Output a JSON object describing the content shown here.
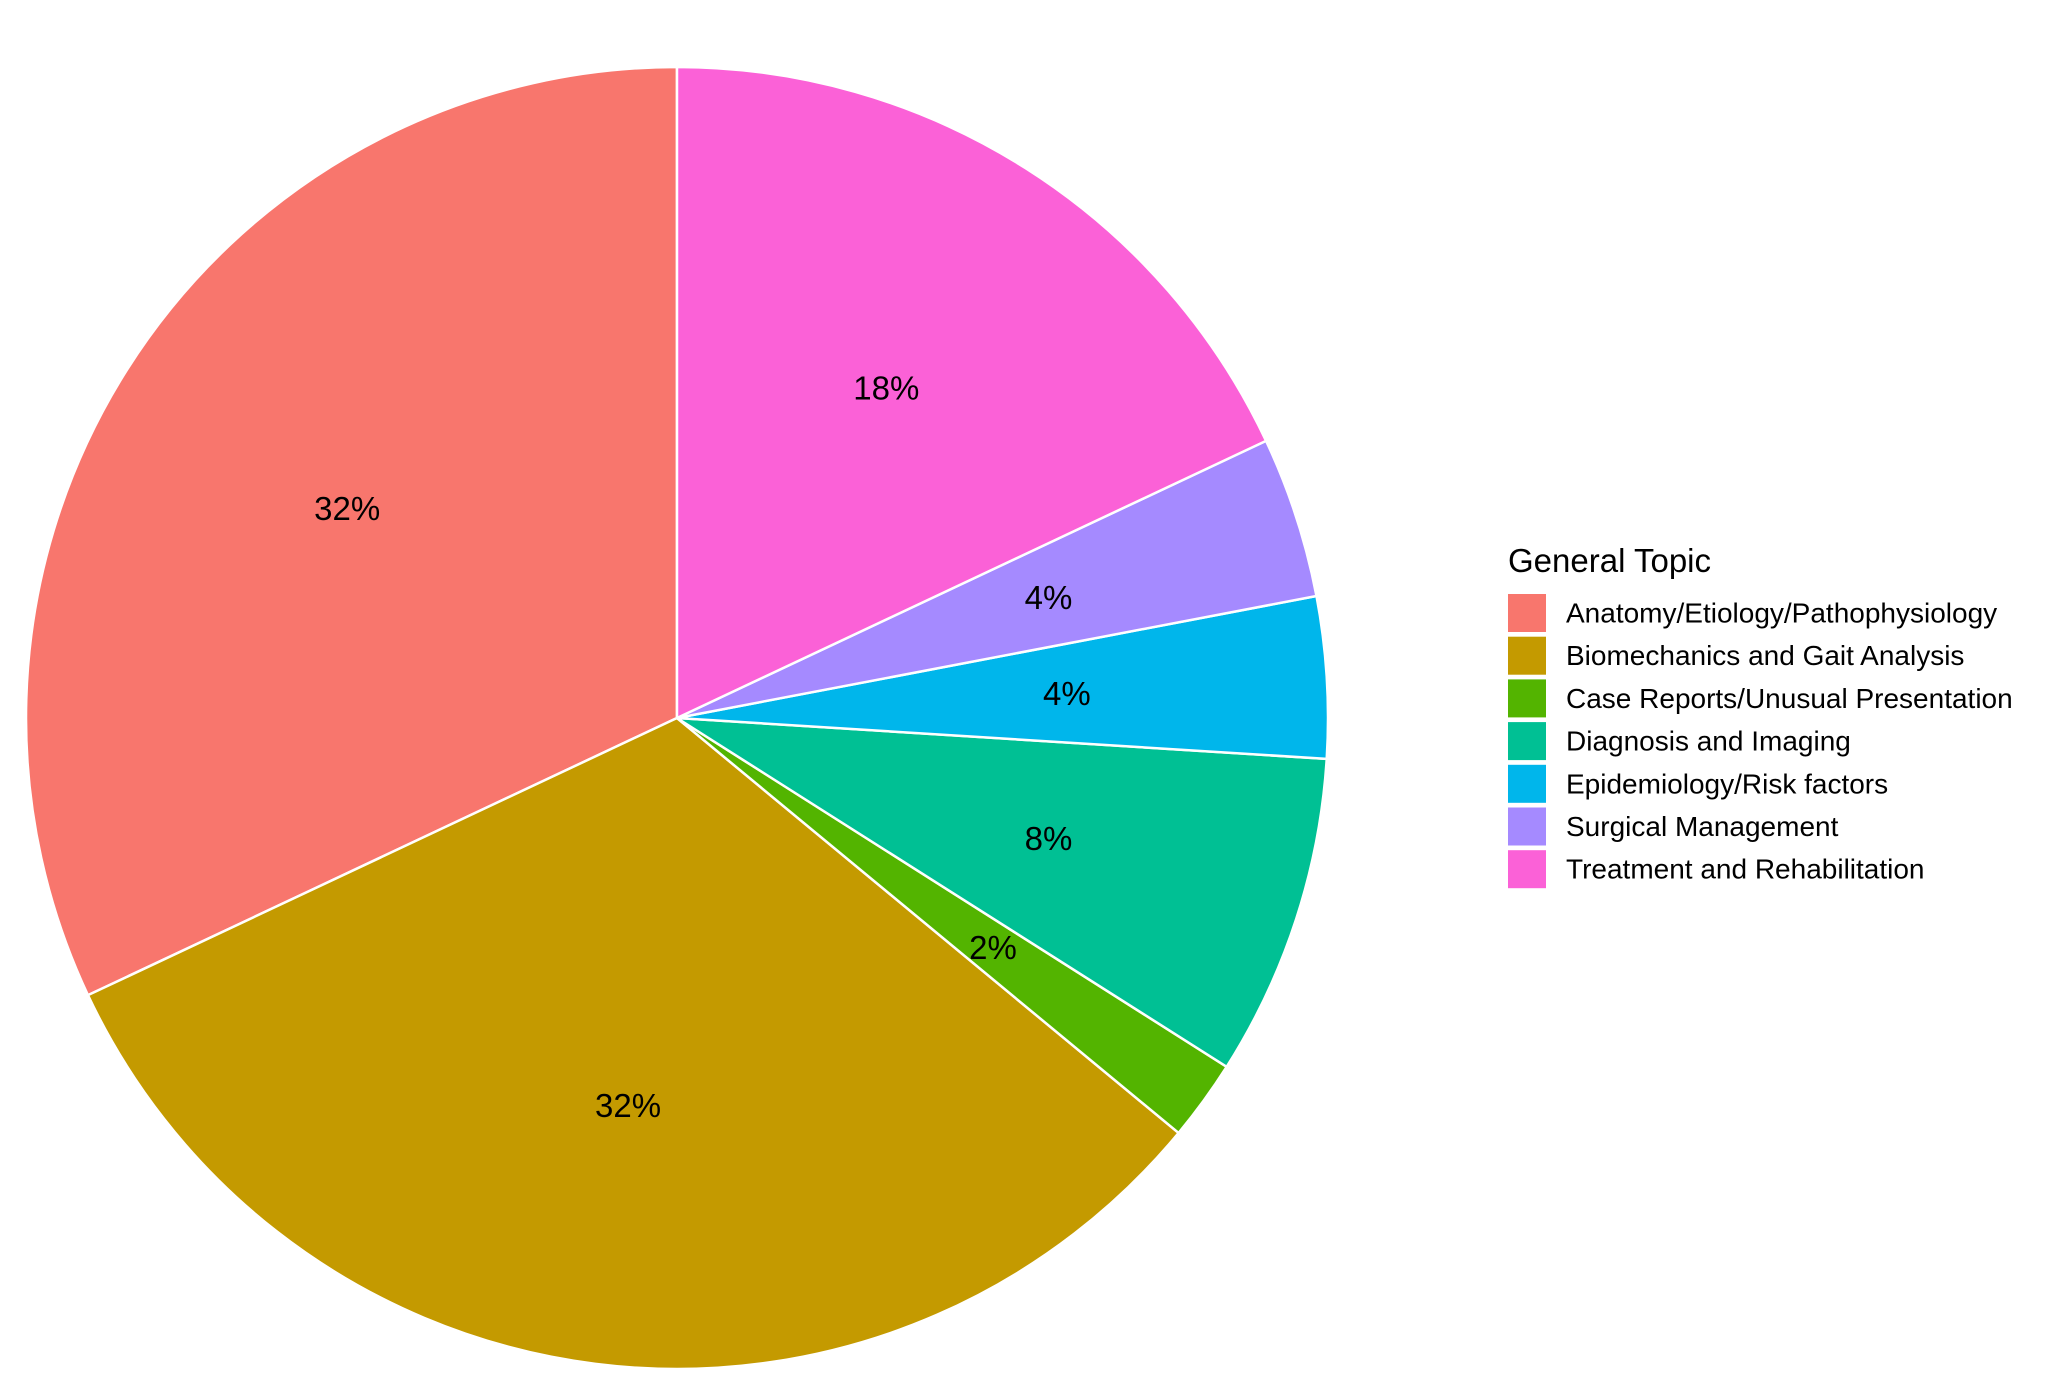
{
  "chart_data": {
    "type": "pie",
    "legend_title": "General Topic",
    "legend_placement": "right",
    "start_angle_deg": 0,
    "direction": "counterclockwise",
    "slices": [
      {
        "category": "Anatomy/Etiology/Pathophysiology",
        "value": 32,
        "label": "32%",
        "color": "#F8766D"
      },
      {
        "category": "Biomechanics and Gait Analysis",
        "value": 32,
        "label": "32%",
        "color": "#C49A00"
      },
      {
        "category": "Case Reports/Unusual Presentation",
        "value": 2,
        "label": "2%",
        "color": "#53B400"
      },
      {
        "category": "Diagnosis and Imaging",
        "value": 8,
        "label": "8%",
        "color": "#00C094"
      },
      {
        "category": "Epidemiology/Risk factors",
        "value": 4,
        "label": "4%",
        "color": "#00B6EB"
      },
      {
        "category": "Surgical Management",
        "value": 4,
        "label": "4%",
        "color": "#A58AFF"
      },
      {
        "category": "Treatment and Rehabilitation",
        "value": 18,
        "label": "18%",
        "color": "#FB61D7"
      }
    ]
  }
}
